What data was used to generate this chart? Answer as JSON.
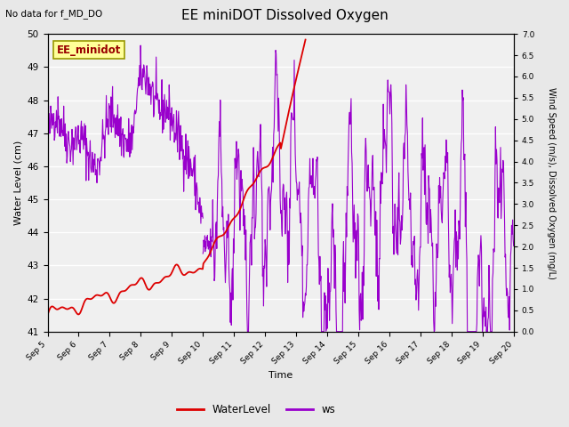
{
  "title": "EE miniDOT Dissolved Oxygen",
  "top_left_text": "No data for f_MD_DO",
  "annotation_box": "EE_minidot",
  "xlabel": "Time",
  "ylabel_left": "Water Level (cm)",
  "ylabel_right": "Wind Speed (m/s), Dissolved Oxygen (mg/L)",
  "ylim_left": [
    41.0,
    50.0
  ],
  "ylim_right": [
    0.0,
    7.0
  ],
  "yticks_left": [
    41.0,
    42.0,
    43.0,
    44.0,
    45.0,
    46.0,
    47.0,
    48.0,
    49.0,
    50.0
  ],
  "yticks_right": [
    0.0,
    0.5,
    1.0,
    1.5,
    2.0,
    2.5,
    3.0,
    3.5,
    4.0,
    4.5,
    5.0,
    5.5,
    6.0,
    6.5,
    7.0
  ],
  "water_level_color": "#dd0000",
  "ws_color": "#9900cc",
  "background_color": "#e8e8e8",
  "plot_bg_color": "#f0f0f0",
  "grid_color": "#ffffff",
  "legend_wl_label": "WaterLevel",
  "legend_ws_label": "ws",
  "figsize": [
    6.4,
    4.8
  ],
  "dpi": 100
}
